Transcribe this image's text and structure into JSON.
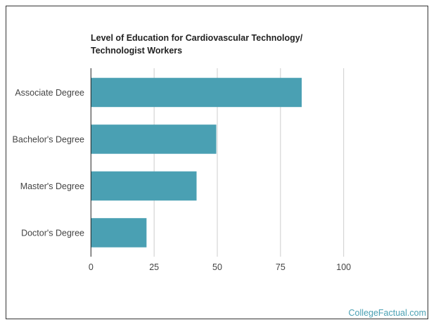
{
  "chart_data": {
    "type": "bar",
    "orientation": "horizontal",
    "title": "Level of Education for Cardiovascular Technology/ Technologist Workers",
    "categories": [
      "Associate Degree",
      "Bachelor's Degree",
      "Master's Degree",
      "Doctor's Degree"
    ],
    "values": [
      83.4,
      49.6,
      41.8,
      22.0
    ],
    "xlim": [
      0,
      100
    ],
    "xticks": [
      0,
      25,
      50,
      75,
      100
    ],
    "xlabel": "",
    "ylabel": "",
    "grid": true,
    "bar_color": "#4aa0b3"
  },
  "credit": "CollegeFactual.com"
}
